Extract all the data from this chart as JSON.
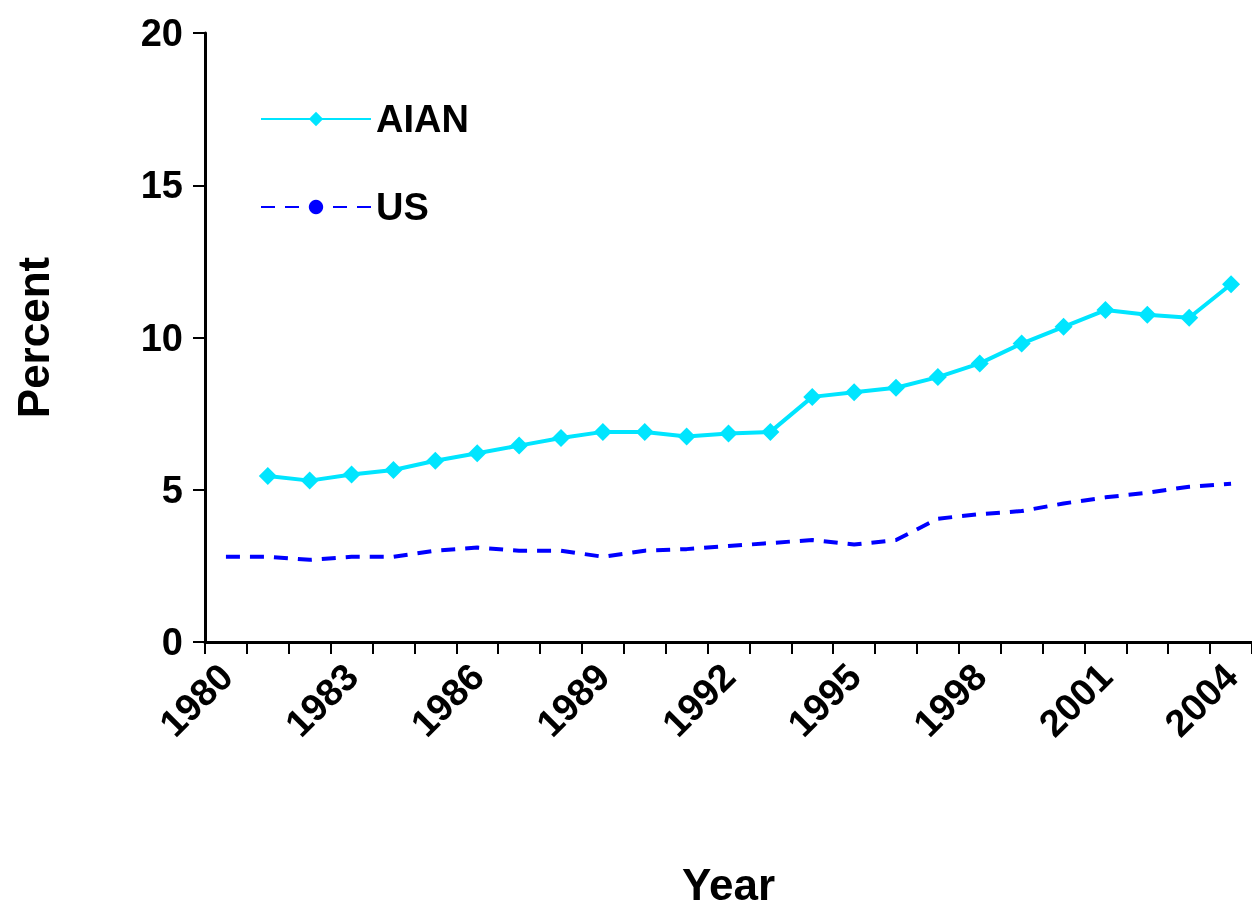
{
  "chart_data": {
    "type": "line",
    "xlabel": "Year",
    "ylabel": "Percent",
    "categories": [
      "1980",
      null,
      null,
      "1983",
      null,
      null,
      "1986",
      null,
      null,
      "1989",
      null,
      null,
      "1992",
      null,
      null,
      "1995",
      null,
      null,
      "1998",
      null,
      null,
      "2001",
      null,
      null,
      "2004"
    ],
    "series": [
      {
        "name": "AIAN",
        "color": "#00e5ff",
        "marker": "diamond",
        "line_style": "solid",
        "values": [
          null,
          5.45,
          5.3,
          5.5,
          5.65,
          5.95,
          6.2,
          6.45,
          6.7,
          6.9,
          6.9,
          6.75,
          6.85,
          6.9,
          8.05,
          8.2,
          8.35,
          8.7,
          9.15,
          9.8,
          10.35,
          10.9,
          10.75,
          10.65,
          11.75
        ]
      },
      {
        "name": "US",
        "color": "#0000ff",
        "marker": "none",
        "line_style": "dashed",
        "values": [
          2.8,
          2.8,
          2.7,
          2.8,
          2.8,
          3.0,
          3.1,
          3.0,
          3.0,
          2.8,
          3.0,
          3.05,
          3.15,
          3.25,
          3.35,
          3.2,
          3.35,
          4.05,
          4.2,
          4.3,
          4.55,
          4.75,
          4.9,
          5.1,
          5.2
        ]
      }
    ],
    "ylim": [
      0,
      20
    ],
    "yticks": [
      0,
      5,
      10,
      15,
      20
    ],
    "grid": false,
    "legend": "top left"
  }
}
